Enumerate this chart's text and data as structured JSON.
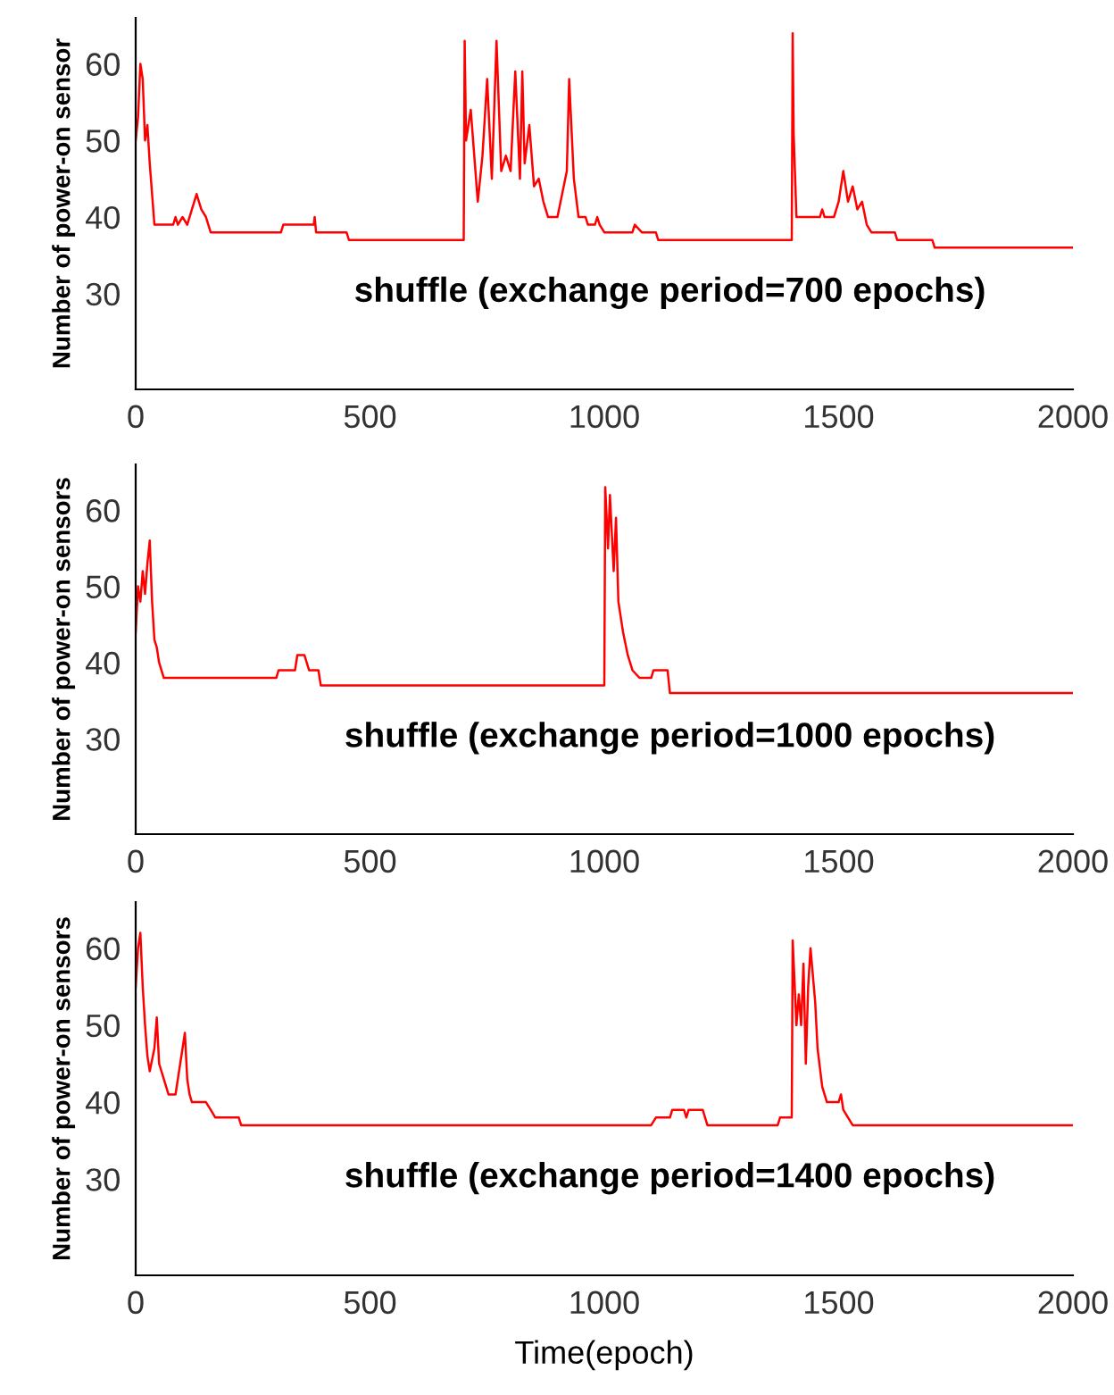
{
  "chart_data": [
    {
      "type": "line",
      "ylabel": "Number of power-on sensor",
      "annotations": [
        "shuffle (exchange period=700 epochs)"
      ],
      "xlim": [
        0,
        2000
      ],
      "ylim": [
        17.5,
        66
      ],
      "xticks": [
        0,
        500,
        1000,
        1500,
        2000
      ],
      "yticks": [
        30,
        40,
        50,
        60
      ],
      "series": [
        {
          "color": "#ff0000",
          "x": [
            0,
            5,
            10,
            15,
            20,
            25,
            30,
            40,
            80,
            85,
            90,
            100,
            110,
            120,
            130,
            140,
            150,
            160,
            310,
            315,
            380,
            382,
            385,
            450,
            455,
            700,
            702,
            705,
            715,
            730,
            740,
            750,
            760,
            770,
            780,
            790,
            800,
            810,
            820,
            825,
            830,
            840,
            850,
            860,
            870,
            880,
            900,
            910,
            920,
            925,
            935,
            945,
            960,
            965,
            980,
            985,
            990,
            1000,
            1060,
            1065,
            1080,
            1110,
            1115,
            1400,
            1402,
            1404,
            1410,
            1460,
            1465,
            1470,
            1490,
            1500,
            1510,
            1520,
            1530,
            1540,
            1550,
            1560,
            1570,
            1620,
            1625,
            1700,
            1705,
            2000
          ],
          "values": [
            50,
            53,
            60,
            58,
            50,
            52,
            47,
            39,
            39,
            40,
            39,
            40,
            39,
            41,
            43,
            41,
            40,
            38,
            38,
            39,
            39,
            40,
            38,
            38,
            37,
            37,
            63,
            50,
            54,
            42,
            48,
            58,
            45,
            63,
            46,
            48,
            46,
            59,
            45,
            59,
            47,
            52,
            44,
            45,
            42,
            40,
            40,
            43,
            46,
            58,
            45,
            40,
            40,
            39,
            39,
            40,
            39,
            38,
            38,
            39,
            38,
            38,
            37,
            37,
            64,
            51,
            40,
            40,
            41,
            40,
            40,
            42,
            46,
            42,
            44,
            41,
            42,
            39,
            38,
            38,
            37,
            37,
            36,
            36
          ]
        }
      ]
    },
    {
      "type": "line",
      "ylabel": "Number of power-on sensors",
      "annotations": [
        "shuffle (exchange period=1000 epochs)"
      ],
      "xlim": [
        0,
        2000
      ],
      "ylim": [
        17.5,
        66
      ],
      "xticks": [
        0,
        500,
        1000,
        1500,
        2000
      ],
      "yticks": [
        30,
        40,
        50,
        60
      ],
      "series": [
        {
          "color": "#ff0000",
          "x": [
            0,
            5,
            10,
            15,
            20,
            25,
            30,
            35,
            40,
            45,
            50,
            60,
            300,
            305,
            340,
            345,
            360,
            370,
            390,
            395,
            1000,
            1002,
            1008,
            1012,
            1020,
            1025,
            1030,
            1040,
            1050,
            1060,
            1075,
            1100,
            1105,
            1135,
            1140,
            2000
          ],
          "values": [
            44,
            50,
            48,
            52,
            49,
            53,
            56,
            48,
            43,
            42,
            40,
            38,
            38,
            39,
            39,
            41,
            41,
            39,
            39,
            37,
            37,
            63,
            55,
            62,
            52,
            59,
            48,
            44,
            41,
            39,
            38,
            38,
            39,
            39,
            36,
            36
          ]
        }
      ]
    },
    {
      "type": "line",
      "xlabel": "Time(epoch)",
      "ylabel": "Number of power-on sensors",
      "annotations": [
        "shuffle (exchange period=1400 epochs)"
      ],
      "xlim": [
        0,
        2000
      ],
      "ylim": [
        17.5,
        66
      ],
      "xticks": [
        0,
        500,
        1000,
        1500,
        2000
      ],
      "yticks": [
        30,
        40,
        50,
        60
      ],
      "series": [
        {
          "color": "#ff0000",
          "x": [
            0,
            5,
            10,
            15,
            20,
            25,
            30,
            40,
            45,
            50,
            60,
            70,
            85,
            95,
            105,
            110,
            115,
            120,
            150,
            160,
            170,
            220,
            225,
            1100,
            1110,
            1140,
            1145,
            1170,
            1175,
            1180,
            1210,
            1220,
            1370,
            1375,
            1400,
            1402,
            1410,
            1415,
            1420,
            1425,
            1430,
            1435,
            1440,
            1450,
            1455,
            1465,
            1475,
            1500,
            1505,
            1510,
            1520,
            1530,
            2000
          ],
          "values": [
            55,
            60,
            62,
            55,
            50,
            46,
            44,
            47,
            51,
            45,
            43,
            41,
            41,
            45,
            49,
            43,
            41,
            40,
            40,
            39,
            38,
            38,
            37,
            37,
            38,
            38,
            39,
            39,
            38,
            39,
            39,
            37,
            37,
            38,
            38,
            61,
            50,
            54,
            50,
            58,
            45,
            55,
            60,
            53,
            47,
            42,
            40,
            40,
            41,
            39,
            38,
            37,
            37
          ]
        }
      ]
    }
  ]
}
